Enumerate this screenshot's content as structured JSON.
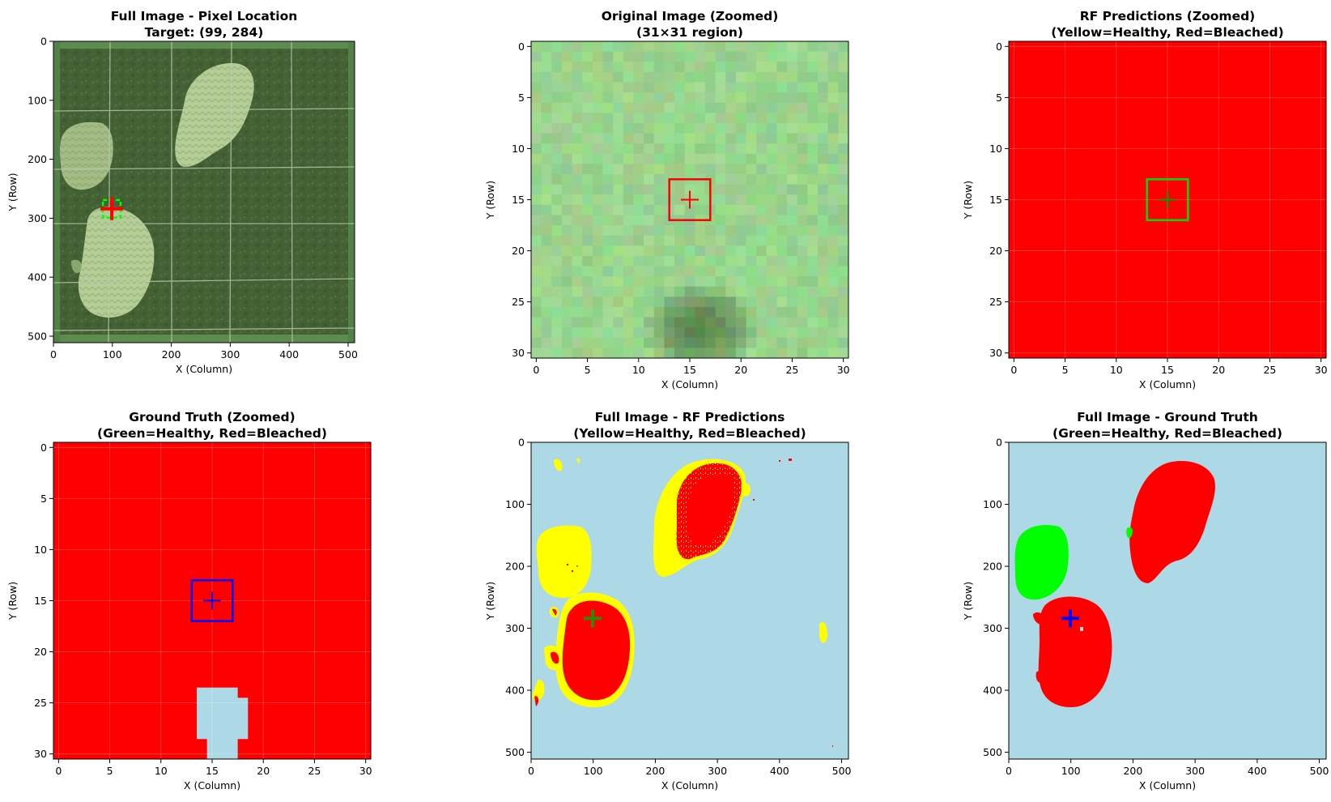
{
  "figure": {
    "panels": [
      {
        "id": "full-image",
        "title": "Full Image - Pixel Location\nTarget: (99, 284)",
        "xlabel": "X (Column)",
        "ylabel": "Y (Row)",
        "xticks": [
          0,
          100,
          200,
          300,
          400,
          500
        ],
        "yticks": [
          0,
          100,
          200,
          300,
          400,
          500
        ],
        "image_content": "underwater coral quadrat photo",
        "marker_color": "#ff0000",
        "box_color": "#00ff00"
      },
      {
        "id": "original-zoomed",
        "title": "Original Image (Zoomed)\n(31×31 region)",
        "xlabel": "X (Column)",
        "ylabel": "Y (Row)",
        "xticks": [
          0,
          5,
          10,
          15,
          20,
          25,
          30
        ],
        "yticks": [
          0,
          5,
          10,
          15,
          20,
          25,
          30
        ],
        "image_content": "pixelated green coral texture",
        "marker_color": "#ff0000",
        "box_color": "#ff0000"
      },
      {
        "id": "rf-zoomed",
        "title": "RF Predictions (Zoomed)\n(Yellow=Healthy, Red=Bleached)",
        "xlabel": "X (Column)",
        "ylabel": "Y (Row)",
        "xticks": [
          0,
          5,
          10,
          15,
          20,
          25,
          30
        ],
        "yticks": [
          0,
          5,
          10,
          15,
          20,
          25,
          30
        ],
        "marker_color": "#00a000",
        "box_color": "#00dd00"
      },
      {
        "id": "gt-zoomed",
        "title": "Ground Truth (Zoomed)\n(Green=Healthy, Red=Bleached)",
        "xlabel": "X (Column)",
        "ylabel": "Y (Row)",
        "xticks": [
          0,
          5,
          10,
          15,
          20,
          25,
          30
        ],
        "yticks": [
          0,
          5,
          10,
          15,
          20,
          25,
          30
        ],
        "marker_color": "#0000ff",
        "box_color": "#0000ff"
      },
      {
        "id": "rf-full",
        "title": "Full Image - RF Predictions\n(Yellow=Healthy, Red=Bleached)",
        "xlabel": "X (Column)",
        "ylabel": "Y (Row)",
        "xticks": [
          0,
          100,
          200,
          300,
          400,
          500
        ],
        "yticks": [
          0,
          100,
          200,
          300,
          400,
          500
        ],
        "marker_color": "#2e8b00"
      },
      {
        "id": "gt-full",
        "title": "Full Image - Ground Truth\n(Green=Healthy, Red=Bleached)",
        "xlabel": "X (Column)",
        "ylabel": "Y (Row)",
        "xticks": [
          0,
          100,
          200,
          300,
          400,
          500
        ],
        "yticks": [
          0,
          100,
          200,
          300,
          400,
          500
        ],
        "marker_color": "#0000ff"
      }
    ]
  },
  "chart_data": [
    {
      "type": "heatmap",
      "title": "Full Image - Pixel Location\nTarget: (99, 284)",
      "xlabel": "X (Column)",
      "ylabel": "Y (Row)",
      "xlim": [
        0,
        511
      ],
      "ylim": [
        511,
        0
      ],
      "target": {
        "x": 99,
        "y": 284
      },
      "target_box": {
        "x0": 84,
        "x1": 114,
        "y0": 269,
        "y1": 299
      }
    },
    {
      "type": "heatmap",
      "title": "Original Image (Zoomed)\n(31×31 region)",
      "xlabel": "X (Column)",
      "ylabel": "Y (Row)",
      "xlim": [
        -0.5,
        30.5
      ],
      "ylim": [
        30.5,
        -0.5
      ],
      "target": {
        "x": 15,
        "y": 15
      },
      "target_box": {
        "x0": 13,
        "x1": 17,
        "y0": 13,
        "y1": 17
      }
    },
    {
      "type": "heatmap",
      "title": "RF Predictions (Zoomed)\n(Yellow=Healthy, Red=Bleached)",
      "xlabel": "X (Column)",
      "ylabel": "Y (Row)",
      "xlim": [
        -0.5,
        30.5
      ],
      "ylim": [
        30.5,
        -0.5
      ],
      "target": {
        "x": 15,
        "y": 15
      },
      "target_box": {
        "x0": 13,
        "x1": 17,
        "y0": 13,
        "y1": 17
      },
      "classes": {
        "Healthy": "#ffff00",
        "Bleached": "#ff0000"
      },
      "fill_class": "Bleached"
    },
    {
      "type": "heatmap",
      "title": "Ground Truth (Zoomed)\n(Green=Healthy, Red=Bleached)",
      "xlabel": "X (Column)",
      "ylabel": "Y (Row)",
      "xlim": [
        -0.5,
        30.5
      ],
      "ylim": [
        30.5,
        -0.5
      ],
      "target": {
        "x": 15,
        "y": 15
      },
      "target_box": {
        "x0": 13,
        "x1": 17,
        "y0": 13,
        "y1": 17
      },
      "classes": {
        "Healthy": "#00ff00",
        "Bleached": "#ff0000",
        "Background": "#add8e6"
      },
      "fill_class": "Bleached",
      "background_region_cells": [
        [
          24,
          14,
          17
        ],
        [
          25,
          14,
          18
        ],
        [
          26,
          14,
          18
        ],
        [
          27,
          14,
          18
        ],
        [
          28,
          14,
          18
        ],
        [
          29,
          15,
          17
        ],
        [
          30,
          15,
          17
        ]
      ]
    },
    {
      "type": "heatmap",
      "title": "Full Image - RF Predictions\n(Yellow=Healthy, Red=Bleached)",
      "xlabel": "X (Column)",
      "ylabel": "Y (Row)",
      "xlim": [
        0,
        511
      ],
      "ylim": [
        511,
        0
      ],
      "target": {
        "x": 99,
        "y": 284
      },
      "classes": {
        "Healthy": "#ffff00",
        "Bleached": "#ff0000",
        "Background": "#add8e6"
      }
    },
    {
      "type": "heatmap",
      "title": "Full Image - Ground Truth\n(Green=Healthy, Red=Bleached)",
      "xlabel": "X (Column)",
      "ylabel": "Y (Row)",
      "xlim": [
        0,
        511
      ],
      "ylim": [
        511,
        0
      ],
      "target": {
        "x": 99,
        "y": 284
      },
      "classes": {
        "Healthy": "#00ff00",
        "Bleached": "#ff0000",
        "Background": "#add8e6"
      }
    }
  ]
}
